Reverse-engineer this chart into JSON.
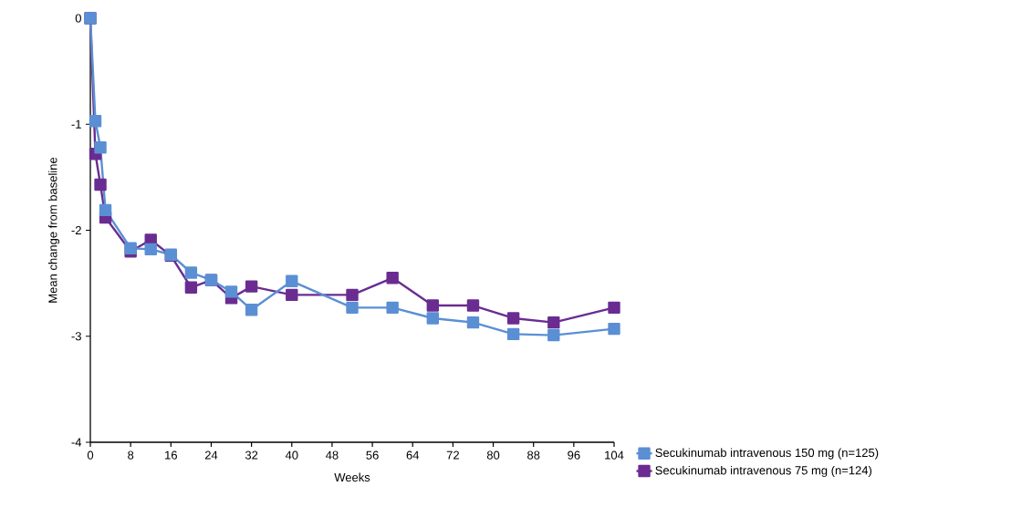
{
  "chart_data": {
    "type": "line",
    "xlabel": "Weeks",
    "ylabel": "Mean change from baseline",
    "x": [
      0,
      1,
      2,
      3,
      8,
      12,
      16,
      20,
      24,
      28,
      32,
      40,
      52,
      60,
      68,
      76,
      84,
      92,
      104
    ],
    "series": [
      {
        "name": "Secukinumab intravenous 150 mg (n=125)",
        "color": "#5b8fd4",
        "values": [
          0,
          -0.97,
          -1.22,
          -1.81,
          -2.17,
          -2.18,
          -2.23,
          -2.4,
          -2.47,
          -2.58,
          -2.75,
          -2.48,
          -2.73,
          -2.73,
          -2.83,
          -2.87,
          -2.98,
          -2.99,
          -2.93
        ]
      },
      {
        "name": "Secukinumab intravenous 75 mg (n=124)",
        "color": "#6a2c91",
        "values": [
          0,
          -1.28,
          -1.57,
          -1.88,
          -2.2,
          -2.09,
          -2.24,
          -2.54,
          -2.47,
          -2.64,
          -2.53,
          -2.61,
          -2.61,
          -2.45,
          -2.71,
          -2.71,
          -2.83,
          -2.87,
          -2.73
        ]
      }
    ],
    "xlim": [
      0,
      104
    ],
    "xticks": [
      0,
      8,
      16,
      24,
      32,
      40,
      48,
      56,
      64,
      72,
      80,
      88,
      96,
      104
    ],
    "ylim": [
      -4,
      0
    ],
    "yticks": [
      -4,
      -3,
      -2,
      -1,
      0
    ],
    "grid": false,
    "legend": "bottom right",
    "marker": "square",
    "line_style": "solid"
  }
}
